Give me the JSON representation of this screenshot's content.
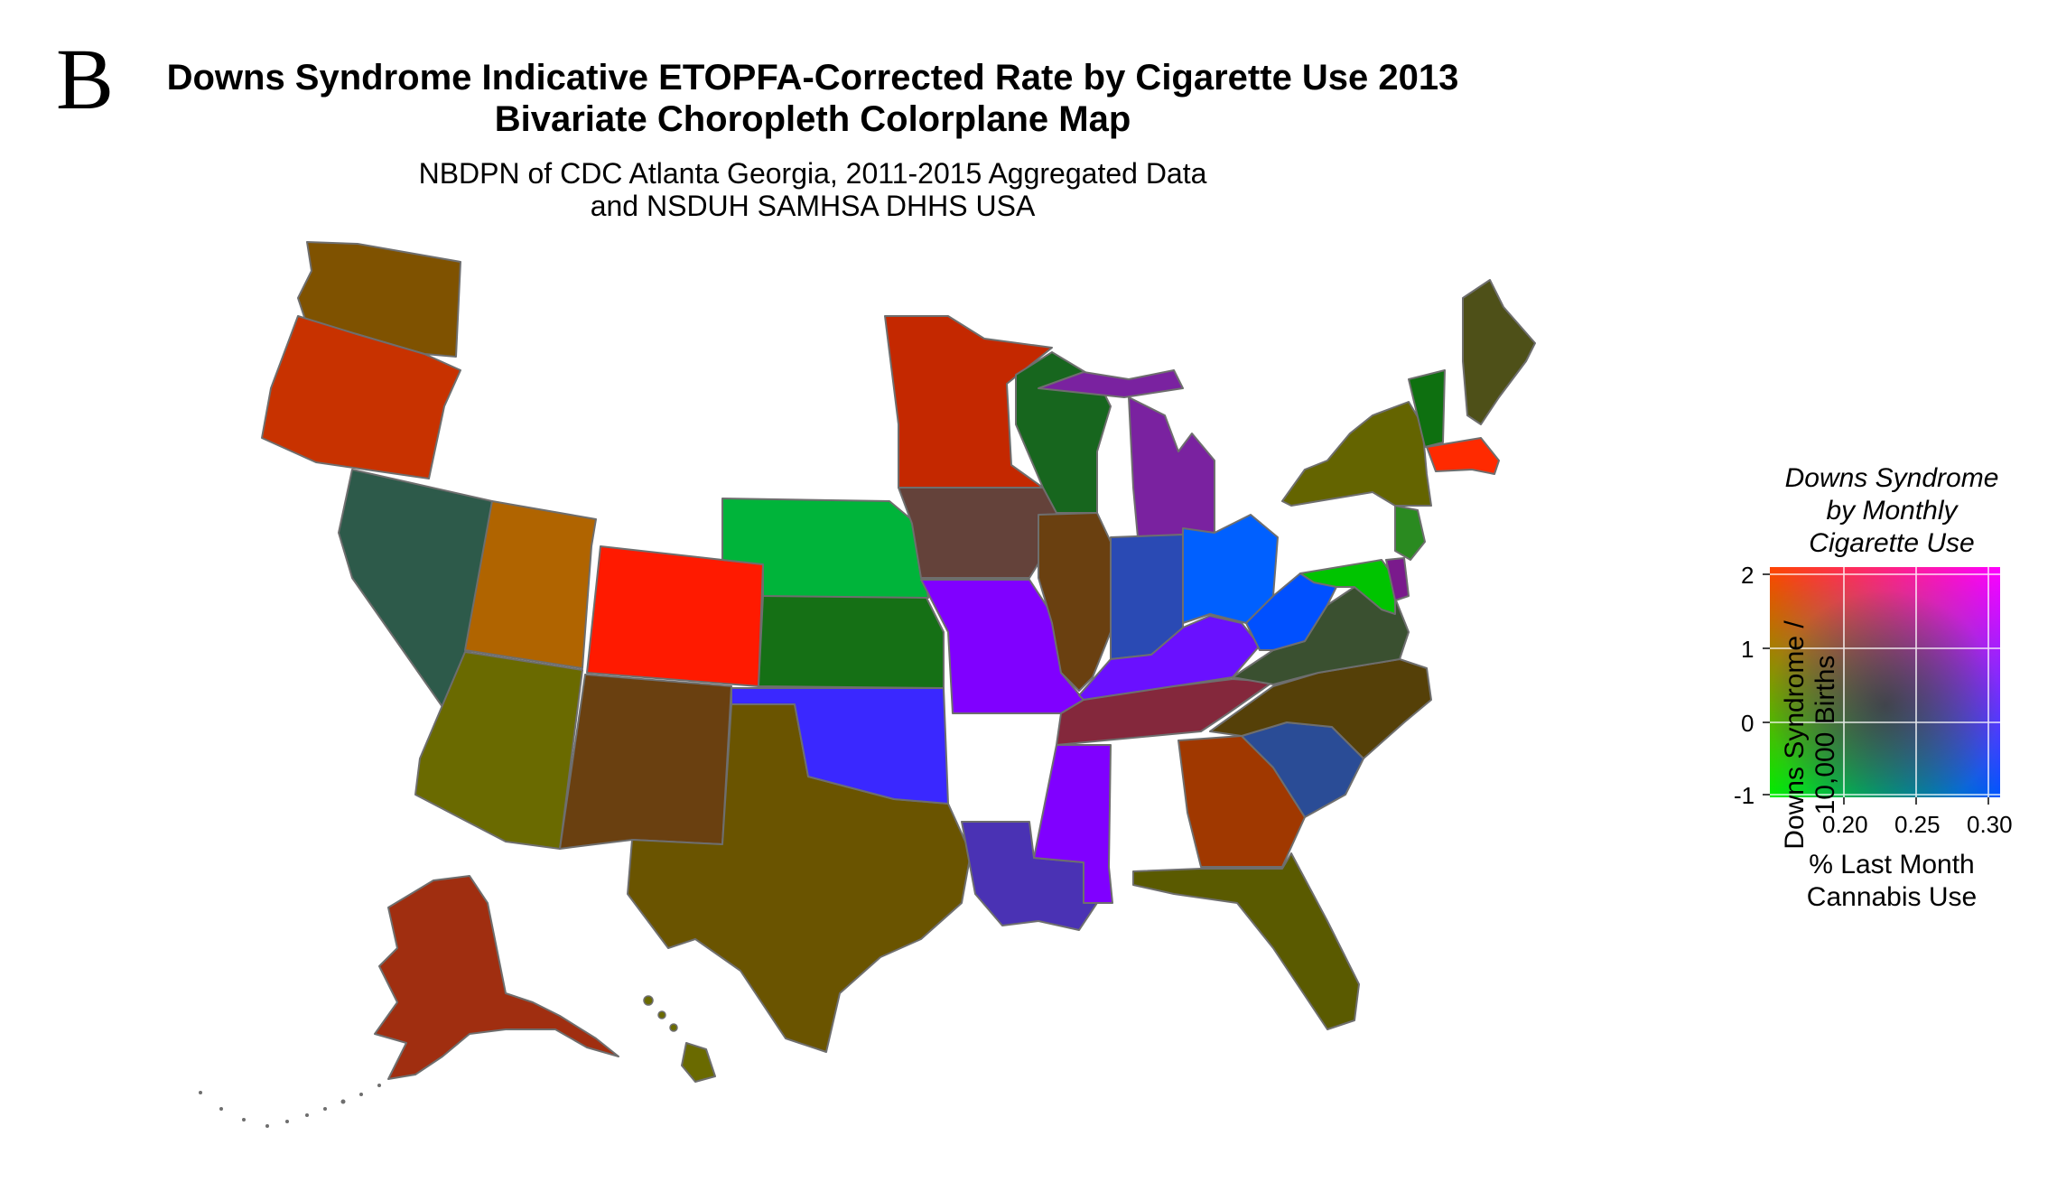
{
  "panel_letter": "B",
  "title_lines": [
    "Downs Syndrome Indicative ETOPFA-Corrected Rate by Cigarette Use 2013",
    "Bivariate Choropleth Colorplane Map"
  ],
  "subtitle_lines": [
    "NBDPN of CDC Atlanta Georgia, 2011-2015 Aggregated Data",
    "and NSDUH SAMHSA DHHS USA"
  ],
  "legend": {
    "title_lines": [
      "Downs Syndrome",
      "by Monthly",
      "Cigarette Use"
    ],
    "y_label_lines": [
      "Downs Syndrome /",
      "10,000 Births"
    ],
    "x_label_lines": [
      "% Last Month",
      "Cannabis Use"
    ],
    "y_ticks": [
      "2",
      "1",
      "0",
      "-1"
    ],
    "x_ticks": [
      "0.20",
      "0.25",
      "0.30"
    ],
    "colors": {
      "top_left": "#ff4400",
      "top_right": "#ff00ff",
      "bottom_left": "#00ee00",
      "bottom_right": "#0055ff",
      "center": "#3a4a10"
    }
  },
  "states": [
    {
      "name": "Washington",
      "fill": "#7f5200"
    },
    {
      "name": "Oregon",
      "fill": "#c83200"
    },
    {
      "name": "Nevada",
      "fill": "#2d5a4a"
    },
    {
      "name": "Utah",
      "fill": "#b06400"
    },
    {
      "name": "Colorado",
      "fill": "#ff1a00"
    },
    {
      "name": "Arizona",
      "fill": "#6a6a00"
    },
    {
      "name": "New Mexico",
      "fill": "#6a4010"
    },
    {
      "name": "Texas",
      "fill": "#6a5400"
    },
    {
      "name": "Oklahoma",
      "fill": "#3a28ff"
    },
    {
      "name": "Kansas",
      "fill": "#157015"
    },
    {
      "name": "Nebraska",
      "fill": "#00b43a"
    },
    {
      "name": "Minnesota",
      "fill": "#c42800"
    },
    {
      "name": "Iowa",
      "fill": "#64423a"
    },
    {
      "name": "Missouri",
      "fill": "#8000ff"
    },
    {
      "name": "Wisconsin",
      "fill": "#17661e"
    },
    {
      "name": "Illinois",
      "fill": "#6a4010"
    },
    {
      "name": "Michigan",
      "fill": "#7a22a0"
    },
    {
      "name": "Indiana",
      "fill": "#2a4ab4"
    },
    {
      "name": "Ohio",
      "fill": "#0060ff"
    },
    {
      "name": "Kentucky",
      "fill": "#6a10ff"
    },
    {
      "name": "Tennessee",
      "fill": "#84283c"
    },
    {
      "name": "Louisiana",
      "fill": "#4a32b4"
    },
    {
      "name": "Mississippi",
      "fill": "#8000ff"
    },
    {
      "name": "Georgia",
      "fill": "#a03800"
    },
    {
      "name": "Florida",
      "fill": "#5a5a00"
    },
    {
      "name": "South Carolina",
      "fill": "#2a4c96"
    },
    {
      "name": "North Carolina",
      "fill": "#554008"
    },
    {
      "name": "Virginia",
      "fill": "#3a5030"
    },
    {
      "name": "West Virginia",
      "fill": "#0050ff"
    },
    {
      "name": "Maryland",
      "fill": "#00c400"
    },
    {
      "name": "Delaware",
      "fill": "#7a1a8c"
    },
    {
      "name": "New Jersey",
      "fill": "#2a8a20"
    },
    {
      "name": "New York",
      "fill": "#646400"
    },
    {
      "name": "Vermont",
      "fill": "#0e7010"
    },
    {
      "name": "Maine",
      "fill": "#4e5018"
    },
    {
      "name": "Massachusetts",
      "fill": "#ff2a00"
    },
    {
      "name": "Alaska",
      "fill": "#a02e10"
    },
    {
      "name": "Hawaii",
      "fill": "#6a6a00"
    }
  ]
}
